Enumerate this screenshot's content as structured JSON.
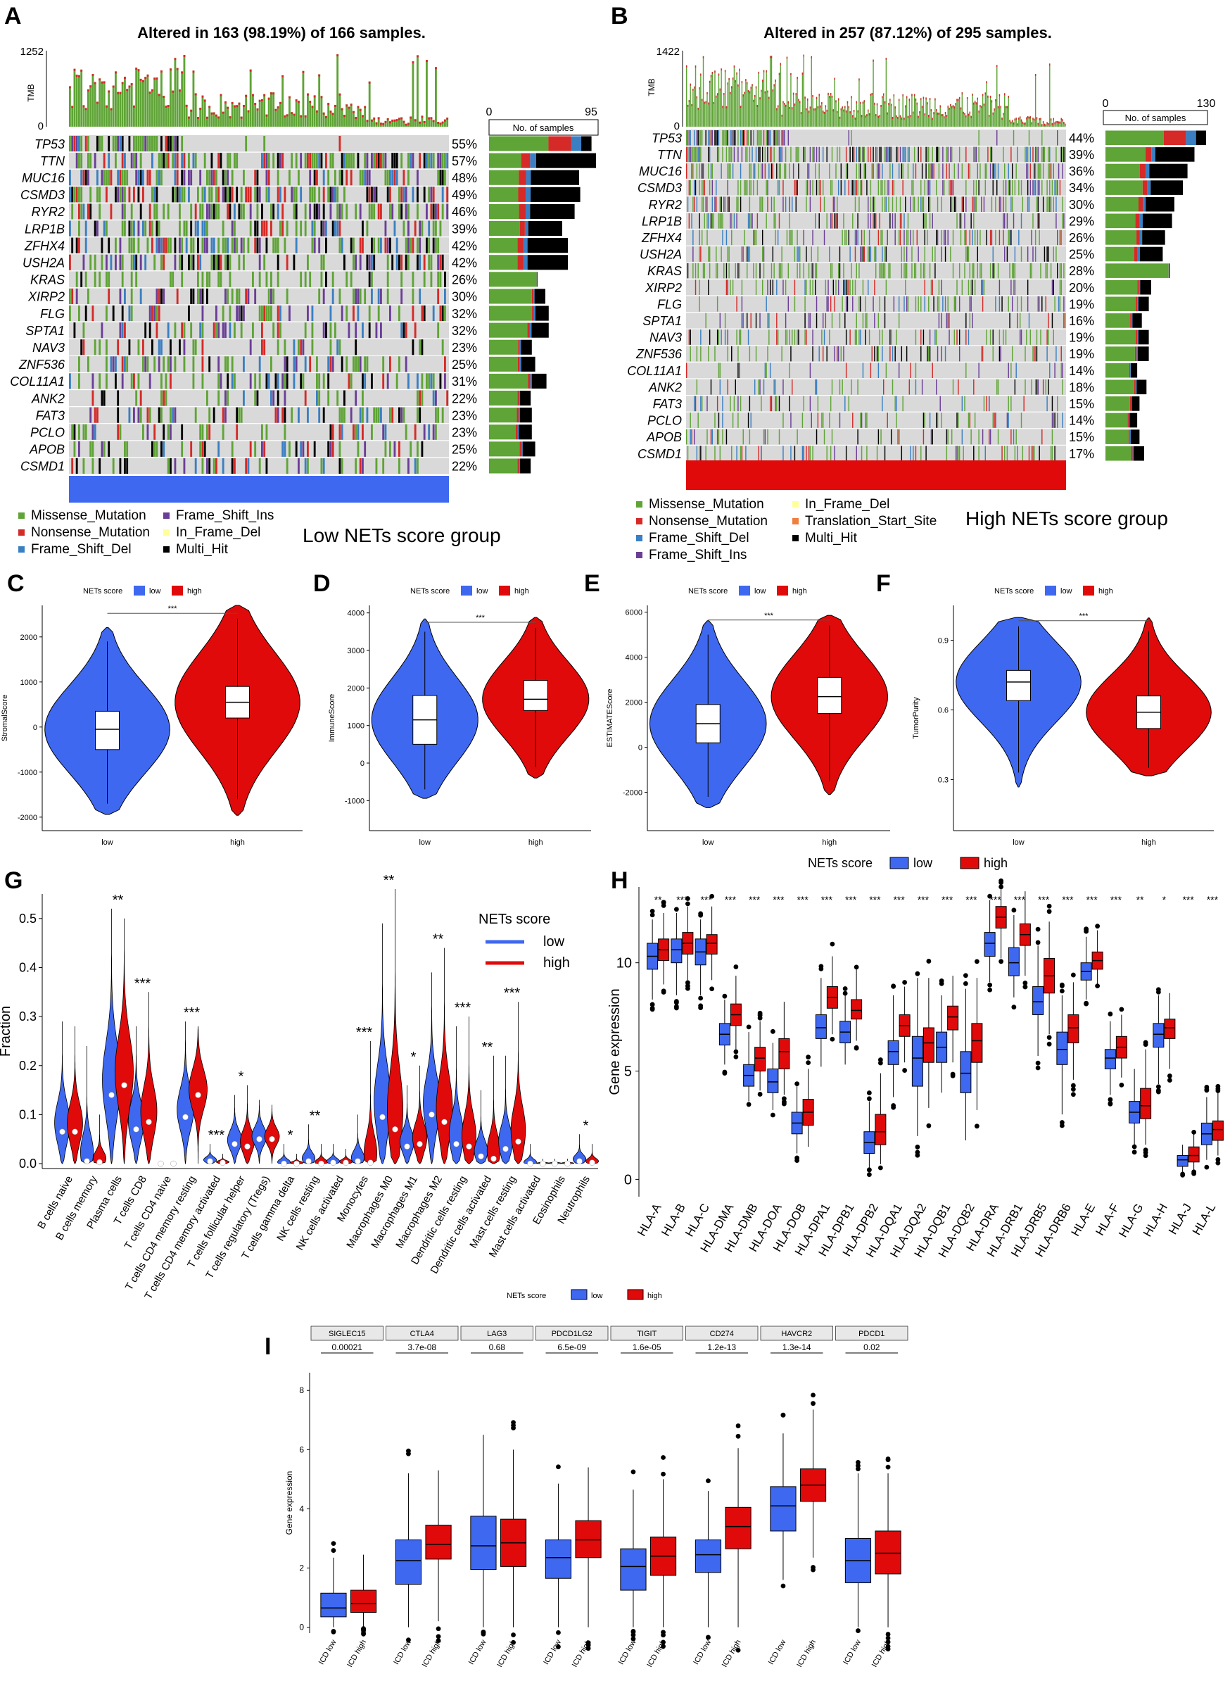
{
  "figure": {
    "colors": {
      "low": "#3F68F0",
      "high": "#E00A0A",
      "missense": "#5FA436",
      "nonsense": "#D52A27",
      "frameshift_del": "#3A7FC2",
      "frameshift_ins": "#6A3E96",
      "inframe_del": "#FFFF99",
      "translation_start": "#F07E3D",
      "multi_hit": "#000000",
      "grey": "#D9D9D9"
    }
  },
  "chart_data": [
    {
      "type": "table",
      "panel": "A",
      "title": "Altered in 163 (98.19%) of 166 samples.",
      "tmb_label": "TMB",
      "tmb_max": "1252",
      "tmb_min": "0",
      "bar_axis_label": "No. of samples",
      "bar_axis_min": "0",
      "bar_axis_max": "95",
      "bar_max": 95,
      "genes": [
        "TP53",
        "TTN",
        "MUC16",
        "CSMD3",
        "RYR2",
        "LRP1B",
        "ZFHX4",
        "USH2A",
        "KRAS",
        "XIRP2",
        "FLG",
        "SPTA1",
        "NAV3",
        "ZNF536",
        "COL11A1",
        "ANK2",
        "FAT3",
        "PCLO",
        "APOB",
        "CSMD1"
      ],
      "percentages": [
        "55%",
        "57%",
        "48%",
        "49%",
        "46%",
        "39%",
        "42%",
        "42%",
        "26%",
        "30%",
        "32%",
        "32%",
        "23%",
        "25%",
        "31%",
        "22%",
        "23%",
        "23%",
        "25%",
        "22%"
      ],
      "counts": [
        91,
        95,
        80,
        81,
        76,
        65,
        70,
        70,
        43,
        50,
        53,
        53,
        38,
        41,
        51,
        37,
        38,
        38,
        41,
        37
      ],
      "missense_share": [
        0.58,
        0.3,
        0.33,
        0.32,
        0.35,
        0.42,
        0.36,
        0.36,
        0.98,
        0.76,
        0.72,
        0.64,
        0.68,
        0.62,
        0.68,
        0.68,
        0.65,
        0.62,
        0.66,
        0.68
      ],
      "legend": [
        "Missense_Mutation",
        "Nonsense_Mutation",
        "Frame_Shift_Del",
        "Frame_Shift_Ins",
        "In_Frame_Del",
        "Multi_Hit"
      ],
      "group_label": "Low NETs score group"
    },
    {
      "type": "table",
      "panel": "B",
      "title": "Altered in 257 (87.12%) of 295 samples.",
      "tmb_label": "TMB",
      "tmb_max": "1422",
      "tmb_min": "0",
      "bar_axis_label": "No. of samples",
      "bar_axis_min": "0",
      "bar_axis_max": "130",
      "bar_max": 130,
      "genes": [
        "TP53",
        "TTN",
        "MUC16",
        "CSMD3",
        "RYR2",
        "LRP1B",
        "ZFHX4",
        "USH2A",
        "KRAS",
        "XIRP2",
        "FLG",
        "SPTA1",
        "NAV3",
        "ZNF536",
        "COL11A1",
        "ANK2",
        "FAT3",
        "PCLO",
        "APOB",
        "CSMD1"
      ],
      "percentages": [
        "44%",
        "39%",
        "36%",
        "34%",
        "30%",
        "29%",
        "26%",
        "25%",
        "28%",
        "20%",
        "19%",
        "16%",
        "19%",
        "19%",
        "14%",
        "18%",
        "15%",
        "14%",
        "15%",
        "17%"
      ],
      "counts": [
        130,
        115,
        106,
        100,
        89,
        86,
        77,
        74,
        83,
        59,
        56,
        47,
        56,
        56,
        41,
        53,
        44,
        41,
        44,
        50
      ],
      "missense_share": [
        0.58,
        0.45,
        0.42,
        0.48,
        0.48,
        0.45,
        0.52,
        0.5,
        0.98,
        0.7,
        0.7,
        0.68,
        0.7,
        0.68,
        0.75,
        0.7,
        0.72,
        0.7,
        0.68,
        0.66
      ],
      "legend": [
        "Missense_Mutation",
        "Nonsense_Mutation",
        "Frame_Shift_Del",
        "Frame_Shift_Ins",
        "In_Frame_Del",
        "Translation_Start_Site",
        "Multi_Hit"
      ],
      "group_label": "High NETs score group"
    },
    {
      "type": "violin",
      "panel": "C",
      "legend_title": "NETs score",
      "series_names": [
        "low",
        "high"
      ],
      "ylabel": "StromalScore",
      "ylim": [
        -2300,
        2700
      ],
      "ticks": [
        -2000,
        -1000,
        0,
        1000,
        2000
      ],
      "categories": [
        "low",
        "high"
      ],
      "low": {
        "min": -1700,
        "q1": -500,
        "median": -50,
        "q3": 350,
        "max": 1900
      },
      "high": {
        "min": -1600,
        "q1": 200,
        "median": 550,
        "q3": 900,
        "max": 2400
      },
      "significance": "***"
    },
    {
      "type": "violin",
      "panel": "D",
      "legend_title": "NETs score",
      "series_names": [
        "low",
        "high"
      ],
      "ylabel": "ImmuneScore",
      "ylim": [
        -1800,
        4200
      ],
      "ticks": [
        -1000,
        0,
        1000,
        2000,
        3000,
        4000
      ],
      "categories": [
        "low",
        "high"
      ],
      "low": {
        "min": -700,
        "q1": 500,
        "median": 1150,
        "q3": 1800,
        "max": 3500
      },
      "high": {
        "min": -100,
        "q1": 1400,
        "median": 1700,
        "q3": 2200,
        "max": 3600
      },
      "significance": "***"
    },
    {
      "type": "violin",
      "panel": "E",
      "legend_title": "NETs score",
      "series_names": [
        "low",
        "high"
      ],
      "ylabel": "ESTIMATEScore",
      "ylim": [
        -3700,
        6300
      ],
      "ticks": [
        -2000,
        0,
        2000,
        4000,
        6000
      ],
      "categories": [
        "low",
        "high"
      ],
      "low": {
        "min": -2200,
        "q1": 200,
        "median": 1050,
        "q3": 1900,
        "max": 5000
      },
      "high": {
        "min": -1500,
        "q1": 1500,
        "median": 2250,
        "q3": 3100,
        "max": 5400
      },
      "significance": "***"
    },
    {
      "type": "violin",
      "panel": "F",
      "legend_title": "NETs score",
      "series_names": [
        "low",
        "high"
      ],
      "ylabel": "TumorPurity",
      "ylim": [
        0.08,
        1.05
      ],
      "ticks": [
        0.3,
        0.6,
        0.9
      ],
      "categories": [
        "low",
        "high"
      ],
      "low": {
        "min": 0.33,
        "q1": 0.64,
        "median": 0.72,
        "q3": 0.77,
        "max": 0.96
      },
      "high": {
        "min": 0.35,
        "q1": 0.52,
        "median": 0.59,
        "q3": 0.66,
        "max": 0.94
      },
      "significance": "***"
    },
    {
      "type": "violin",
      "panel": "G",
      "ylabel": "Fraction",
      "ylim": [
        -0.01,
        0.55
      ],
      "ticks": [
        0.0,
        0.1,
        0.2,
        0.3,
        0.4,
        0.5
      ],
      "legend_title": "NETs score",
      "series_names": [
        "low",
        "high"
      ],
      "categories": [
        "B cells naive",
        "B cells memory",
        "Plasma cells",
        "T cells CD8",
        "T cells CD4 naive",
        "T cells CD4 memory resting",
        "T cells CD4 memory activated",
        "T cells follicular helper",
        "T cells regulatory (Tregs)",
        "T cells gamma delta",
        "NK cells resting",
        "NK cells activated",
        "Monocytes",
        "Macrophages M0",
        "Macrophages M1",
        "Macrophages M2",
        "Dendritic cells resting",
        "Dendritic cells activated",
        "Mast cells resting",
        "Mast cells activated",
        "Eosinophils",
        "Neutrophils"
      ],
      "low_median": [
        0.065,
        0.005,
        0.14,
        0.07,
        0.0,
        0.095,
        0.005,
        0.04,
        0.05,
        0.0,
        0.005,
        0.002,
        0.005,
        0.095,
        0.035,
        0.1,
        0.04,
        0.015,
        0.03,
        0.0,
        0.0,
        0.005
      ],
      "high_median": [
        0.065,
        0.003,
        0.16,
        0.085,
        0.0,
        0.14,
        0.002,
        0.035,
        0.05,
        0.0,
        0.0,
        0.002,
        0.002,
        0.07,
        0.04,
        0.085,
        0.035,
        0.01,
        0.045,
        0.0,
        0.0,
        0.002
      ],
      "low_max": [
        0.29,
        0.24,
        0.52,
        0.28,
        0.0,
        0.29,
        0.04,
        0.14,
        0.13,
        0.04,
        0.08,
        0.04,
        0.1,
        0.49,
        0.16,
        0.39,
        0.28,
        0.15,
        0.22,
        0.04,
        0.01,
        0.06
      ],
      "high_max": [
        0.28,
        0.1,
        0.5,
        0.35,
        0.0,
        0.28,
        0.02,
        0.16,
        0.12,
        0.02,
        0.04,
        0.03,
        0.25,
        0.56,
        0.2,
        0.44,
        0.3,
        0.22,
        0.33,
        0.01,
        0.01,
        0.04
      ],
      "significance": [
        "",
        "",
        "**",
        "***",
        "",
        "***",
        "***",
        "*",
        "",
        "*",
        "**",
        "",
        "***",
        "**",
        "*",
        "**",
        "***",
        "**",
        "***",
        "",
        "",
        "*"
      ]
    },
    {
      "type": "bar",
      "panel": "H",
      "ylabel": "Gene expression",
      "ylim": [
        -0.8,
        13.5
      ],
      "ticks": [
        0,
        5,
        10
      ],
      "legend_title": "NETs score",
      "series_names": [
        "low",
        "high"
      ],
      "categories": [
        "HLA-A",
        "HLA-B",
        "HLA-C",
        "HLA-DMA",
        "HLA-DMB",
        "HLA-DOA",
        "HLA-DOB",
        "HLA-DPA1",
        "HLA-DPB1",
        "HLA-DPB2",
        "HLA-DQA1",
        "HLA-DQA2",
        "HLA-DQB1",
        "HLA-DQB2",
        "HLA-DRA",
        "HLA-DRB1",
        "HLA-DRB5",
        "HLA-DRB6",
        "HLA-E",
        "HLA-F",
        "HLA-G",
        "HLA-H",
        "HLA-J",
        "HLA-L"
      ],
      "low": [
        [
          8.3,
          9.7,
          10.3,
          10.9,
          12.0
        ],
        [
          8.5,
          10.0,
          10.6,
          11.1,
          12.3
        ],
        [
          8.5,
          9.9,
          10.5,
          11.1,
          12.0
        ],
        [
          5.3,
          6.2,
          6.7,
          7.2,
          8.3
        ],
        [
          3.6,
          4.3,
          4.8,
          5.3,
          6.8
        ],
        [
          3.2,
          4.0,
          4.5,
          5.1,
          6.3
        ],
        [
          1.2,
          2.1,
          2.6,
          3.1,
          4.3
        ],
        [
          5.2,
          6.5,
          7.0,
          7.6,
          9.3
        ],
        [
          5.3,
          6.3,
          6.8,
          7.3,
          8.5
        ],
        [
          0.5,
          1.2,
          1.7,
          2.2,
          3.6
        ],
        [
          3.8,
          5.3,
          5.9,
          6.4,
          8.5
        ],
        [
          2.0,
          4.3,
          5.6,
          6.6,
          9.3
        ],
        [
          4.0,
          5.4,
          6.1,
          6.8,
          8.5
        ],
        [
          1.8,
          4.0,
          4.9,
          5.9,
          8.8
        ],
        [
          9.1,
          10.3,
          10.9,
          11.4,
          12.9
        ],
        [
          8.4,
          9.4,
          10.0,
          10.7,
          12.2
        ],
        [
          5.7,
          7.6,
          8.2,
          8.9,
          10.8
        ],
        [
          3.0,
          5.3,
          6.0,
          6.8,
          8.5
        ],
        [
          8.3,
          9.2,
          9.6,
          10.0,
          11.2
        ],
        [
          3.9,
          5.1,
          5.6,
          6.0,
          7.3
        ],
        [
          1.6,
          2.6,
          3.1,
          3.6,
          5.1
        ],
        [
          4.4,
          6.1,
          6.7,
          7.2,
          8.5
        ],
        [
          0.3,
          0.6,
          0.9,
          1.1,
          1.6
        ],
        [
          0.9,
          1.6,
          2.1,
          2.6,
          3.8
        ]
      ],
      "high": [
        [
          9.0,
          10.1,
          10.6,
          11.1,
          12.3
        ],
        [
          9.2,
          10.4,
          10.9,
          11.4,
          12.6
        ],
        [
          9.2,
          10.4,
          10.9,
          11.3,
          12.6
        ],
        [
          6.0,
          7.1,
          7.6,
          8.1,
          9.4
        ],
        [
          4.1,
          5.0,
          5.6,
          6.1,
          7.3
        ],
        [
          3.9,
          5.1,
          5.9,
          6.5,
          8.2
        ],
        [
          1.5,
          2.5,
          3.1,
          3.7,
          5.1
        ],
        [
          6.7,
          7.9,
          8.4,
          8.9,
          10.3
        ],
        [
          6.4,
          7.4,
          7.8,
          8.3,
          9.7
        ],
        [
          0.7,
          1.6,
          2.2,
          3.0,
          4.9
        ],
        [
          5.4,
          6.6,
          7.1,
          7.6,
          8.9
        ],
        [
          3.3,
          5.4,
          6.3,
          7.0,
          9.3
        ],
        [
          5.4,
          6.9,
          7.5,
          8.0,
          9.4
        ],
        [
          3.2,
          5.4,
          6.4,
          7.2,
          9.3
        ],
        [
          10.2,
          11.6,
          12.1,
          12.6,
          13.4
        ],
        [
          9.4,
          10.8,
          11.3,
          11.8,
          13.3
        ],
        [
          6.7,
          8.6,
          9.4,
          10.2,
          11.9
        ],
        [
          4.6,
          6.3,
          7.0,
          7.6,
          9.1
        ],
        [
          9.0,
          9.7,
          10.1,
          10.5,
          11.5
        ],
        [
          4.7,
          5.6,
          6.1,
          6.6,
          7.6
        ],
        [
          1.6,
          2.8,
          3.4,
          4.2,
          6.0
        ],
        [
          5.1,
          6.5,
          7.0,
          7.4,
          8.6
        ],
        [
          0.4,
          0.8,
          1.1,
          1.5,
          2.1
        ],
        [
          1.1,
          1.8,
          2.3,
          2.7,
          4.0
        ]
      ],
      "significance": [
        "**",
        "***",
        "***",
        "***",
        "***",
        "***",
        "***",
        "***",
        "***",
        "***",
        "***",
        "***",
        "***",
        "***",
        "***",
        "***",
        "***",
        "***",
        "***",
        "***",
        "**",
        "*",
        "***",
        "***"
      ]
    },
    {
      "type": "bar",
      "panel": "I",
      "ylabel": "Gene expression",
      "ylim": [
        -0.2,
        8.6
      ],
      "ticks": [
        0,
        2,
        4,
        6,
        8
      ],
      "legend_title": "NETs score",
      "series_names": [
        "low",
        "high"
      ],
      "categories": [
        "SIGLEC15",
        "CTLA4",
        "LAG3",
        "PDCD1LG2",
        "TIGIT",
        "CD274",
        "HAVCR2",
        "PDCD1"
      ],
      "p_values": [
        "0.00021",
        "3.7e-08",
        "0.68",
        "6.5e-09",
        "1.6e-05",
        "1.2e-13",
        "1.3e-14",
        "0.02"
      ],
      "x_tick_labels": [
        "ICD low",
        "ICD high"
      ],
      "low": [
        [
          0.0,
          0.35,
          0.65,
          1.15,
          2.35
        ],
        [
          0.0,
          1.45,
          2.25,
          2.95,
          5.2
        ],
        [
          0.0,
          1.95,
          2.75,
          3.75,
          6.5
        ],
        [
          0.0,
          1.65,
          2.35,
          2.95,
          4.85
        ],
        [
          0.0,
          1.25,
          2.05,
          2.65,
          4.65
        ],
        [
          0.0,
          1.85,
          2.45,
          2.95,
          4.6
        ],
        [
          1.6,
          3.25,
          4.1,
          4.75,
          6.55
        ],
        [
          0.0,
          1.5,
          2.25,
          3.0,
          5.2
        ]
      ],
      "high": [
        [
          0.0,
          0.5,
          0.8,
          1.25,
          2.45
        ],
        [
          0.2,
          2.3,
          2.8,
          3.45,
          5.3
        ],
        [
          0.0,
          2.05,
          2.85,
          3.65,
          6.0
        ],
        [
          0.0,
          2.35,
          2.95,
          3.6,
          5.4
        ],
        [
          0.0,
          1.75,
          2.4,
          3.05,
          5.0
        ],
        [
          0.0,
          2.65,
          3.4,
          4.05,
          6.05
        ],
        [
          2.35,
          4.25,
          4.8,
          5.35,
          7.35
        ],
        [
          0.0,
          1.8,
          2.5,
          3.25,
          5.2
        ]
      ]
    }
  ]
}
